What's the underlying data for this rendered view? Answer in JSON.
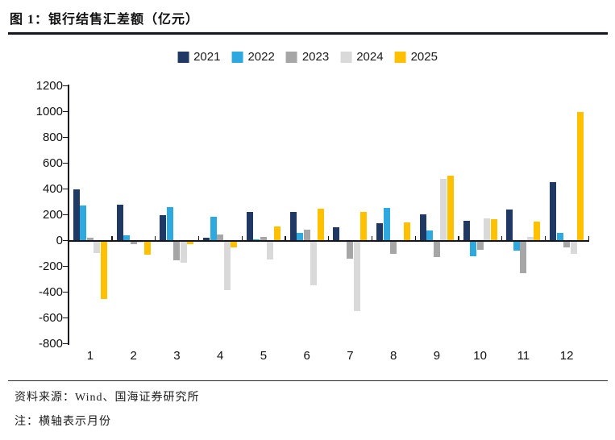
{
  "header": {
    "title": "图 1：银行结售汇差额（亿元）"
  },
  "chart_data": {
    "type": "bar",
    "title": "银行结售汇差额（亿元）",
    "xlabel": "",
    "ylabel": "",
    "ylim": [
      -800,
      1200
    ],
    "y_ticks": [
      1200,
      1000,
      800,
      600,
      400,
      200,
      0,
      -200,
      -400,
      -600,
      -800
    ],
    "grid": false,
    "legend_position": "top",
    "categories": [
      "1",
      "2",
      "3",
      "4",
      "5",
      "6",
      "7",
      "8",
      "9",
      "10",
      "11",
      "12"
    ],
    "series": [
      {
        "name": "2021",
        "color": "#1F3864",
        "values": [
          400,
          280,
          195,
          25,
          225,
          220,
          105,
          135,
          205,
          155,
          240,
          455
        ]
      },
      {
        "name": "2022",
        "color": "#2EA9E0",
        "values": [
          275,
          40,
          260,
          185,
          10,
          60,
          0,
          255,
          80,
          -120,
          -80,
          60
        ]
      },
      {
        "name": "2023",
        "color": "#A6A6A6",
        "values": [
          20,
          -30,
          -150,
          45,
          30,
          85,
          -140,
          -105,
          -130,
          -70,
          -250,
          -50
        ]
      },
      {
        "name": "2024",
        "color": "#D9D9D9",
        "values": [
          -95,
          -15,
          -170,
          -385,
          -145,
          -345,
          -545,
          0,
          480,
          175,
          30,
          -100
        ]
      },
      {
        "name": "2025",
        "color": "#FFC000",
        "values": [
          -450,
          -110,
          -25,
          -50,
          110,
          250,
          225,
          140,
          505,
          165,
          150,
          1000
        ]
      }
    ]
  },
  "footer": {
    "source": "资料来源：Wind、国海证券研究所",
    "note": "注：横轴表示月份"
  }
}
